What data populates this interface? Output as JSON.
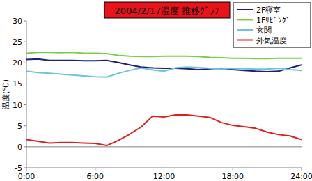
{
  "chart_data": {
    "type": "line",
    "title": "2004/2/17温度 推移ｸﾞﾗﾌ",
    "y_label": "温度(℃)",
    "x": [
      0,
      1,
      2,
      3,
      4,
      5,
      6,
      7,
      8,
      9,
      10,
      11,
      12,
      13,
      14,
      15,
      16,
      17,
      18,
      19,
      20,
      21,
      22,
      23,
      24
    ],
    "xlim": [
      0,
      24
    ],
    "xticks": [
      {
        "value": 0,
        "label": "0:00"
      },
      {
        "value": 6,
        "label": "6:00"
      },
      {
        "value": 12,
        "label": "12:00"
      },
      {
        "value": 18,
        "label": "18:00"
      },
      {
        "value": 24,
        "label": "24:00"
      }
    ],
    "ylim": [
      -5,
      30
    ],
    "yticks": [
      -5,
      0,
      5,
      10,
      15,
      20,
      25,
      30
    ],
    "grid": false,
    "legend": "upper right",
    "series": [
      {
        "name": "2F寝室",
        "color": "#1f1f7a",
        "values": [
          20.8,
          20.9,
          20.6,
          20.6,
          20.6,
          20.5,
          20.5,
          20.6,
          20.1,
          19.5,
          19.0,
          18.8,
          18.7,
          18.7,
          18.6,
          18.4,
          18.6,
          18.7,
          18.4,
          18.2,
          18.0,
          17.9,
          18.0,
          18.8,
          19.5
        ]
      },
      {
        "name": "1Fﾘﾋﾞﾝｸﾞ",
        "color": "#7ccc4a",
        "values": [
          22.3,
          22.5,
          22.5,
          22.4,
          22.5,
          22.3,
          22.3,
          22.2,
          21.8,
          21.6,
          21.5,
          21.5,
          21.6,
          21.6,
          21.6,
          21.5,
          21.3,
          21.2,
          21.1,
          21.1,
          21.0,
          21.0,
          21.1,
          21.1,
          21.1
        ]
      },
      {
        "name": "玄関",
        "color": "#6cc3dd",
        "values": [
          18.0,
          17.7,
          17.5,
          17.3,
          17.1,
          16.9,
          16.7,
          16.6,
          17.5,
          18.2,
          18.8,
          18.3,
          18.0,
          18.8,
          19.0,
          18.9,
          18.7,
          18.5,
          18.7,
          18.6,
          18.5,
          18.5,
          18.7,
          18.4,
          18.2
        ]
      },
      {
        "name": "外気温度",
        "color": "#e0201a",
        "values": [
          1.7,
          1.3,
          0.9,
          1.0,
          1.0,
          0.9,
          0.8,
          0.3,
          1.5,
          3.0,
          4.7,
          7.3,
          7.1,
          7.6,
          7.6,
          7.3,
          7.0,
          5.8,
          5.1,
          4.8,
          4.4,
          3.5,
          2.9,
          2.6,
          1.7
        ]
      }
    ]
  }
}
